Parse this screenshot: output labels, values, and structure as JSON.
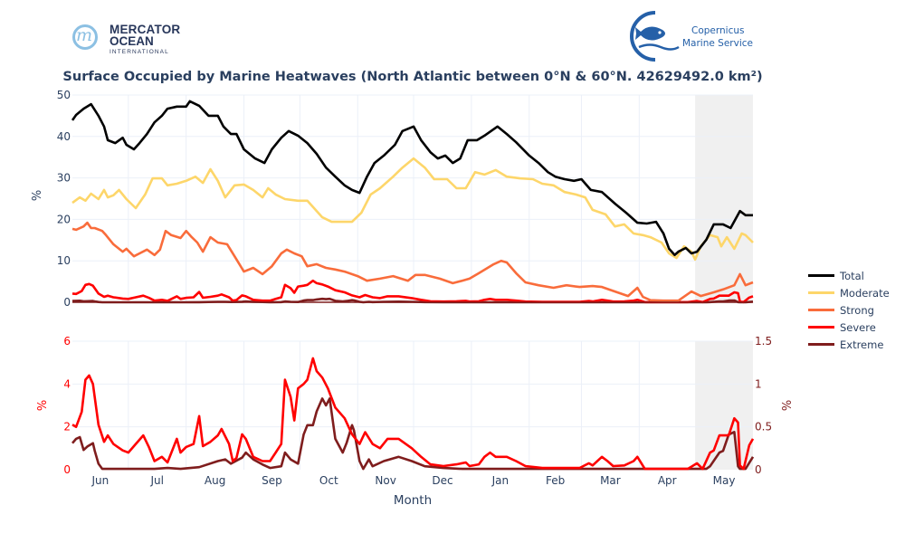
{
  "logos": {
    "left": {
      "line1": "MERCATOR",
      "line2": "OCEAN",
      "line3": "INTERNATIONAL"
    },
    "right": {
      "line1": "Copernicus",
      "line2": "Marine Service"
    }
  },
  "colors": {
    "Total": "#000000",
    "Moderate": "#fdd66a",
    "Strong": "#f96c3b",
    "Severe": "#ff0000",
    "Extreme": "#7f1d1d",
    "axis_text": "#2a3f5f",
    "grid": "#ebf0f8",
    "shade": "#f0f0f0"
  },
  "chart_data": [
    {
      "type": "line",
      "title": "Surface Occupied by Marine Heatwaves (North Atlantic between 0°N & 60°N. 42629492.0 km²)",
      "xlabel": "",
      "ylabel": "%",
      "ylim": [
        0,
        50
      ],
      "yticks": [
        "0",
        "10",
        "20",
        "30",
        "40",
        "50"
      ],
      "xunit": "days since start of June",
      "xlim": [
        0,
        365
      ],
      "grid": true,
      "shaded_range": [
        334,
        365
      ],
      "legend": "right",
      "legend_entries": [
        "Total",
        "Moderate",
        "Strong",
        "Severe",
        "Extreme"
      ],
      "series": [
        {
          "name": "Total",
          "x": [
            0,
            2,
            6,
            10,
            14,
            17,
            19,
            23,
            27,
            29,
            33,
            36,
            40,
            44,
            48,
            51,
            56,
            61,
            63,
            68,
            73,
            78,
            81,
            85,
            88,
            92,
            98,
            103,
            107,
            112,
            116,
            121,
            126,
            131,
            136,
            141,
            146,
            150,
            154,
            158,
            162,
            167,
            173,
            177,
            183,
            187,
            192,
            196,
            200,
            204,
            208,
            212,
            217,
            221,
            228,
            233,
            238,
            245,
            250,
            255,
            259,
            264,
            269,
            273,
            278,
            284,
            291,
            297,
            303,
            308,
            313,
            317,
            320,
            323,
            325,
            329,
            332,
            335,
            340,
            344,
            349,
            353,
            358,
            361,
            365
          ],
          "y": [
            43.9,
            45.2,
            46.7,
            47.8,
            45.0,
            42.4,
            39.1,
            38.4,
            39.7,
            38.0,
            36.9,
            38.4,
            40.6,
            43.4,
            45.0,
            46.7,
            47.2,
            47.2,
            48.5,
            47.4,
            45.0,
            45.0,
            42.4,
            40.6,
            40.6,
            36.9,
            34.7,
            33.6,
            36.9,
            39.7,
            41.3,
            40.2,
            38.4,
            35.8,
            32.5,
            30.3,
            28.2,
            27.1,
            26.4,
            30.3,
            33.6,
            35.4,
            38.0,
            41.3,
            42.4,
            39.1,
            36.2,
            34.7,
            35.4,
            33.6,
            34.7,
            39.1,
            39.1,
            40.2,
            42.4,
            40.6,
            38.6,
            35.4,
            33.6,
            31.4,
            30.3,
            29.7,
            29.3,
            29.7,
            27.1,
            26.6,
            23.8,
            21.6,
            19.2,
            19.0,
            19.4,
            16.6,
            12.9,
            11.4,
            12.2,
            13.1,
            11.8,
            12.2,
            15.1,
            18.8,
            18.8,
            17.9,
            22.0,
            21.0,
            21.0
          ]
        },
        {
          "name": "Moderate",
          "x": [
            0,
            4,
            7,
            10,
            14,
            17,
            19,
            22,
            25,
            29,
            34,
            39,
            43,
            48,
            51,
            56,
            61,
            66,
            70,
            74,
            78,
            82,
            87,
            92,
            97,
            102,
            105,
            109,
            114,
            121,
            126,
            134,
            139,
            146,
            150,
            155,
            160,
            165,
            172,
            177,
            183,
            189,
            194,
            201,
            206,
            211,
            216,
            221,
            227,
            233,
            240,
            247,
            252,
            258,
            264,
            270,
            275,
            279,
            286,
            291,
            296,
            301,
            306,
            310,
            316,
            320,
            324,
            328,
            332,
            334,
            337,
            342,
            346,
            348,
            351,
            355,
            359,
            361,
            365
          ],
          "y": [
            24.0,
            25.3,
            24.5,
            26.2,
            24.9,
            27.1,
            25.3,
            25.8,
            27.1,
            24.9,
            22.7,
            26.0,
            29.9,
            29.9,
            28.2,
            28.6,
            29.3,
            30.3,
            28.8,
            32.1,
            29.3,
            25.3,
            28.2,
            28.4,
            27.1,
            25.3,
            27.5,
            26.0,
            24.9,
            24.5,
            24.5,
            20.5,
            19.4,
            19.4,
            19.4,
            21.6,
            26.0,
            27.5,
            30.3,
            32.5,
            34.7,
            32.5,
            29.7,
            29.7,
            27.5,
            27.5,
            31.4,
            30.8,
            31.9,
            30.3,
            29.9,
            29.7,
            28.6,
            28.2,
            26.6,
            26.0,
            25.3,
            22.3,
            21.2,
            18.3,
            18.8,
            16.6,
            16.2,
            15.7,
            14.4,
            11.8,
            10.7,
            13.5,
            12.2,
            10.3,
            13.5,
            16.2,
            15.7,
            13.5,
            15.7,
            12.9,
            16.6,
            16.2,
            14.4
          ]
        },
        {
          "name": "Strong",
          "x": [
            0,
            2,
            6,
            8,
            10,
            12,
            16,
            18,
            22,
            27,
            29,
            33,
            36,
            40,
            44,
            47,
            50,
            53,
            58,
            61,
            64,
            67,
            70,
            74,
            78,
            83,
            87,
            92,
            97,
            102,
            107,
            112,
            115,
            119,
            123,
            126,
            131,
            136,
            141,
            146,
            153,
            158,
            165,
            172,
            180,
            184,
            189,
            197,
            204,
            209,
            213,
            218,
            226,
            230,
            233,
            238,
            243,
            250,
            258,
            265,
            272,
            279,
            284,
            291,
            298,
            303,
            306,
            310,
            317,
            325,
            332,
            337,
            344,
            349,
            355,
            358,
            361,
            365
          ],
          "y": [
            17.7,
            17.5,
            18.3,
            19.2,
            17.9,
            17.9,
            17.2,
            16.2,
            14.0,
            12.2,
            12.9,
            11.1,
            11.8,
            12.7,
            11.4,
            12.7,
            17.2,
            16.2,
            15.5,
            17.2,
            15.7,
            14.4,
            12.2,
            15.7,
            14.4,
            14.0,
            11.1,
            7.4,
            8.3,
            6.8,
            8.7,
            11.8,
            12.7,
            11.8,
            11.1,
            8.7,
            9.2,
            8.3,
            7.9,
            7.4,
            6.3,
            5.2,
            5.7,
            6.3,
            5.2,
            6.6,
            6.6,
            5.7,
            4.6,
            5.2,
            5.7,
            7.0,
            9.2,
            10.0,
            9.6,
            7.0,
            4.8,
            4.1,
            3.5,
            4.1,
            3.7,
            3.9,
            3.7,
            2.6,
            1.5,
            3.5,
            1.3,
            0.5,
            0.4,
            0.4,
            2.6,
            1.5,
            2.4,
            3.1,
            4.1,
            6.8,
            4.1,
            4.8
          ]
        },
        {
          "name": "Severe",
          "x": [
            0,
            2,
            5,
            7,
            9,
            11,
            14,
            17,
            19,
            22,
            27,
            30,
            34,
            38,
            41,
            44,
            48,
            51,
            56,
            58,
            61,
            65,
            68,
            70,
            74,
            78,
            80,
            84,
            86,
            88,
            91,
            93,
            97,
            102,
            106,
            109,
            112,
            114,
            117,
            119,
            121,
            124,
            126,
            129,
            131,
            134,
            137,
            141,
            146,
            150,
            154,
            157,
            161,
            165,
            169,
            175,
            182,
            187,
            192,
            199,
            206,
            211,
            213,
            218,
            221,
            224,
            227,
            233,
            238,
            243,
            252,
            262,
            272,
            277,
            279,
            284,
            287,
            290,
            296,
            301,
            303,
            307,
            316,
            330,
            335,
            338,
            342,
            344,
            347,
            349,
            352,
            355,
            357,
            358,
            360,
            363,
            365
          ],
          "y": [
            2.1,
            2.0,
            2.7,
            4.2,
            4.4,
            4.0,
            2.1,
            1.3,
            1.6,
            1.2,
            0.9,
            0.8,
            1.2,
            1.6,
            1.06,
            0.4,
            0.6,
            0.34,
            1.44,
            0.8,
            1.06,
            1.2,
            2.5,
            1.1,
            1.3,
            1.6,
            1.9,
            1.2,
            0.4,
            0.55,
            1.65,
            1.44,
            0.6,
            0.4,
            0.4,
            0.8,
            1.2,
            4.2,
            3.4,
            2.3,
            3.8,
            4.0,
            4.2,
            5.2,
            4.6,
            4.3,
            3.8,
            2.9,
            2.4,
            1.65,
            1.2,
            1.75,
            1.2,
            1.0,
            1.44,
            1.44,
            1.0,
            0.6,
            0.25,
            0.17,
            0.25,
            0.34,
            0.17,
            0.25,
            0.6,
            0.8,
            0.6,
            0.6,
            0.4,
            0.17,
            0.08,
            0.08,
            0.08,
            0.3,
            0.2,
            0.6,
            0.4,
            0.17,
            0.2,
            0.4,
            0.6,
            0.04,
            0.04,
            0.04,
            0.3,
            0.04,
            0.8,
            0.9,
            1.6,
            1.6,
            1.6,
            2.4,
            2.2,
            0.2,
            0.04,
            1.14,
            1.44
          ]
        },
        {
          "name": "Extreme",
          "x": [
            0,
            2,
            4,
            6,
            8,
            11,
            12,
            14,
            16,
            30,
            44,
            51,
            58,
            68,
            78,
            82,
            85,
            91,
            93,
            97,
            102,
            106,
            112,
            114,
            117,
            121,
            124,
            126,
            129,
            131,
            134,
            136,
            138,
            141,
            145,
            147,
            150,
            151,
            154,
            156,
            159,
            161,
            167,
            175,
            182,
            189,
            199,
            209,
            224,
            300,
            340,
            342,
            347,
            349,
            352,
            355,
            357,
            358,
            361,
            365
          ],
          "y": [
            0.31,
            0.36,
            0.38,
            0.23,
            0.27,
            0.31,
            0.22,
            0.07,
            0.01,
            0.01,
            0.01,
            0.02,
            0.01,
            0.03,
            0.1,
            0.12,
            0.07,
            0.14,
            0.2,
            0.12,
            0.06,
            0.02,
            0.04,
            0.2,
            0.12,
            0.07,
            0.41,
            0.52,
            0.52,
            0.68,
            0.83,
            0.75,
            0.83,
            0.36,
            0.2,
            0.31,
            0.52,
            0.46,
            0.1,
            0.01,
            0.12,
            0.04,
            0.1,
            0.15,
            0.1,
            0.04,
            0.02,
            0.01,
            0.01,
            0.01,
            0.01,
            0.04,
            0.2,
            0.22,
            0.41,
            0.44,
            0.04,
            0.01,
            0.01,
            0.15
          ]
        }
      ]
    },
    {
      "type": "line",
      "title": "",
      "xlabel": "Month",
      "ylabel": "%",
      "ylabel_right": "%",
      "ylim": [
        0,
        6
      ],
      "ylim_right": [
        0,
        1.5
      ],
      "yticks": [
        "0",
        "2",
        "4",
        "6"
      ],
      "yticks_right": [
        "0",
        "0.5",
        "1",
        "1.5"
      ],
      "xlim": [
        0,
        365
      ],
      "xticks": [
        "Jun",
        "Jul",
        "Aug",
        "Sep",
        "Oct",
        "Nov",
        "Dec",
        "Jan",
        "Feb",
        "Mar",
        "Apr",
        "May"
      ],
      "month_starts": [
        0,
        30,
        61,
        92,
        122,
        153,
        183,
        214,
        245,
        273,
        304,
        334
      ],
      "grid": true,
      "shaded_range": [
        334,
        365
      ],
      "series_refs": [
        {
          "name": "Severe",
          "axis": "left"
        },
        {
          "name": "Extreme",
          "axis": "right"
        }
      ]
    }
  ]
}
